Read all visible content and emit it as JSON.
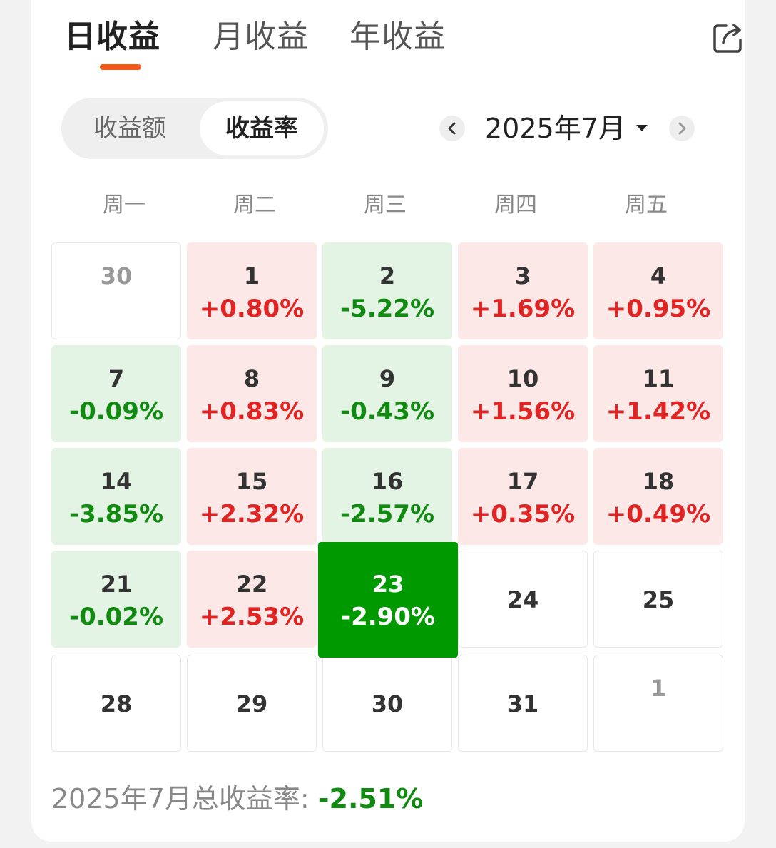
{
  "tabs": [
    {
      "label": "日收益",
      "active": true
    },
    {
      "label": "月收益",
      "active": false
    },
    {
      "label": "年收益",
      "active": false
    }
  ],
  "accent_color": "#f05a1a",
  "toggle": {
    "options": [
      "收益额",
      "收益率"
    ],
    "selected": "收益率"
  },
  "month_nav": {
    "label": "2025年7月",
    "prev_icon": "chevron-left-icon",
    "next_icon": "chevron-right-icon",
    "dropdown_icon": "caret-down-icon"
  },
  "share_icon": "share-icon",
  "weekdays": [
    "周一",
    "周二",
    "周三",
    "周四",
    "周五"
  ],
  "colors": {
    "up": "#e02424",
    "down": "#108a10",
    "up_bg": "#fde8e8",
    "down_bg": "#e4f4e4",
    "selected_bg": "#009900"
  },
  "calendar": [
    [
      {
        "day": "30",
        "pct": "",
        "state": "other"
      },
      {
        "day": "1",
        "pct": "+0.80%",
        "state": "up"
      },
      {
        "day": "2",
        "pct": "-5.22%",
        "state": "down"
      },
      {
        "day": "3",
        "pct": "+1.69%",
        "state": "up"
      },
      {
        "day": "4",
        "pct": "+0.95%",
        "state": "up"
      }
    ],
    [
      {
        "day": "7",
        "pct": "-0.09%",
        "state": "down"
      },
      {
        "day": "8",
        "pct": "+0.83%",
        "state": "up"
      },
      {
        "day": "9",
        "pct": "-0.43%",
        "state": "down"
      },
      {
        "day": "10",
        "pct": "+1.56%",
        "state": "up"
      },
      {
        "day": "11",
        "pct": "+1.42%",
        "state": "up"
      }
    ],
    [
      {
        "day": "14",
        "pct": "-3.85%",
        "state": "down"
      },
      {
        "day": "15",
        "pct": "+2.32%",
        "state": "up"
      },
      {
        "day": "16",
        "pct": "-2.57%",
        "state": "down"
      },
      {
        "day": "17",
        "pct": "+0.35%",
        "state": "up"
      },
      {
        "day": "18",
        "pct": "+0.49%",
        "state": "up"
      }
    ],
    [
      {
        "day": "21",
        "pct": "-0.02%",
        "state": "down"
      },
      {
        "day": "22",
        "pct": "+2.53%",
        "state": "up"
      },
      {
        "day": "23",
        "pct": "-2.90%",
        "state": "selected"
      },
      {
        "day": "24",
        "pct": "",
        "state": "empty"
      },
      {
        "day": "25",
        "pct": "",
        "state": "empty"
      }
    ],
    [
      {
        "day": "28",
        "pct": "",
        "state": "empty"
      },
      {
        "day": "29",
        "pct": "",
        "state": "empty"
      },
      {
        "day": "30",
        "pct": "",
        "state": "empty"
      },
      {
        "day": "31",
        "pct": "",
        "state": "empty"
      },
      {
        "day": "1",
        "pct": "",
        "state": "other"
      }
    ]
  ],
  "summary": {
    "label": "2025年7月总收益率: ",
    "value": "-2.51%"
  }
}
